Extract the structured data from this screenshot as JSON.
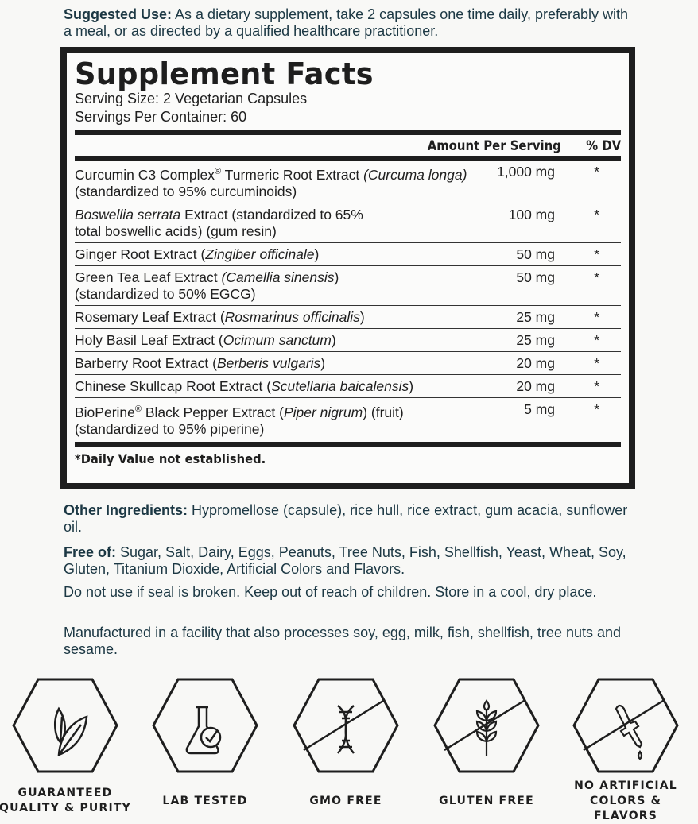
{
  "suggested_use": {
    "label": "Suggested Use:",
    "text": " As a dietary supplement, take 2 capsules one time daily, preferably with a meal, or as directed by a qualified healthcare practitioner."
  },
  "facts": {
    "title": "Supplement Facts",
    "serving_size": "Serving Size: 2 Vegetarian Capsules",
    "servings_per_container": "Servings Per Container: 60",
    "amount_header": "Amount Per Serving",
    "dv_header": "% DV",
    "ingredients": [
      {
        "name": [
          [
            "Curcumin C3 Complex",
            0
          ],
          [
            "®",
            2
          ],
          [
            " Turmeric Root Extract ",
            0
          ],
          [
            "(Curcuma longa)",
            1
          ],
          [
            "\n(standardized to 95% curcuminoids)",
            0
          ]
        ],
        "amount": "1,000 mg",
        "dv": "*"
      },
      {
        "name": [
          [
            "Boswellia serrata",
            1
          ],
          [
            " Extract (standardized to 65%\ntotal boswellic acids) (gum resin)",
            0
          ]
        ],
        "amount": "100 mg",
        "dv": "*"
      },
      {
        "name": [
          [
            "Ginger Root Extract (",
            0
          ],
          [
            "Zingiber officinale",
            1
          ],
          [
            ")",
            0
          ]
        ],
        "amount": "50 mg",
        "dv": "*"
      },
      {
        "name": [
          [
            "Green Tea Leaf Extract ",
            0
          ],
          [
            "(Camellia sinensis",
            1
          ],
          [
            ")\n(standardized to 50% EGCG)",
            0
          ]
        ],
        "amount": "50 mg",
        "dv": "*"
      },
      {
        "name": [
          [
            "Rosemary Leaf Extract (",
            0
          ],
          [
            "Rosmarinus officinalis",
            1
          ],
          [
            ")",
            0
          ]
        ],
        "amount": "25 mg",
        "dv": "*"
      },
      {
        "name": [
          [
            "Holy Basil Leaf Extract (",
            0
          ],
          [
            "Ocimum sanctum",
            1
          ],
          [
            ")",
            0
          ]
        ],
        "amount": "25 mg",
        "dv": "*"
      },
      {
        "name": [
          [
            "Barberry Root Extract (",
            0
          ],
          [
            "Berberis vulgaris",
            1
          ],
          [
            ")",
            0
          ]
        ],
        "amount": "20 mg",
        "dv": "*"
      },
      {
        "name": [
          [
            "Chinese Skullcap Root Extract (",
            0
          ],
          [
            "Scutellaria baicalensis",
            1
          ],
          [
            ")",
            0
          ]
        ],
        "amount": "20 mg",
        "dv": "*"
      },
      {
        "name": [
          [
            "BioPerine",
            0
          ],
          [
            "®",
            2
          ],
          [
            " Black Pepper Extract (",
            0
          ],
          [
            "Piper nigrum",
            1
          ],
          [
            ") (fruit)\n(standardized to 95% piperine)",
            0
          ]
        ],
        "amount": "5 mg",
        "dv": "*"
      }
    ],
    "footnote": "*Daily Value not established."
  },
  "other_ingredients": {
    "label": "Other Ingredients:",
    "text": " Hypromellose (capsule), rice hull, rice extract, gum acacia, sunflower oil."
  },
  "free_of": {
    "label": "Free of:",
    "text": " Sugar, Salt, Dairy, Eggs, Peanuts, Tree Nuts, Fish, Shellfish, Yeast, Wheat, Soy, Gluten, Titanium Dioxide, Artificial Colors and Flavors."
  },
  "warning": "Do not use if seal is broken. Keep out of reach of children. Store in a cool, dry place.",
  "allergen": "Manufactured in a facility that also processes soy, egg, milk, fish, shellfish, tree nuts and sesame.",
  "badges": [
    {
      "label": "GUARANTEED QUALITY & PURITY",
      "icon": "leaf-icon"
    },
    {
      "label": "LAB TESTED",
      "icon": "flask-check-icon"
    },
    {
      "label": "GMO FREE",
      "icon": "dna-icon"
    },
    {
      "label": "GLUTEN FREE",
      "icon": "wheat-icon"
    },
    {
      "label": "NO ARTIFICIAL COLORS & FLAVORS",
      "icon": "dropper-icon"
    }
  ],
  "colors": {
    "text": "#1c3844",
    "label_ink": "#1e1e1e",
    "background": "#f8f8f6"
  }
}
